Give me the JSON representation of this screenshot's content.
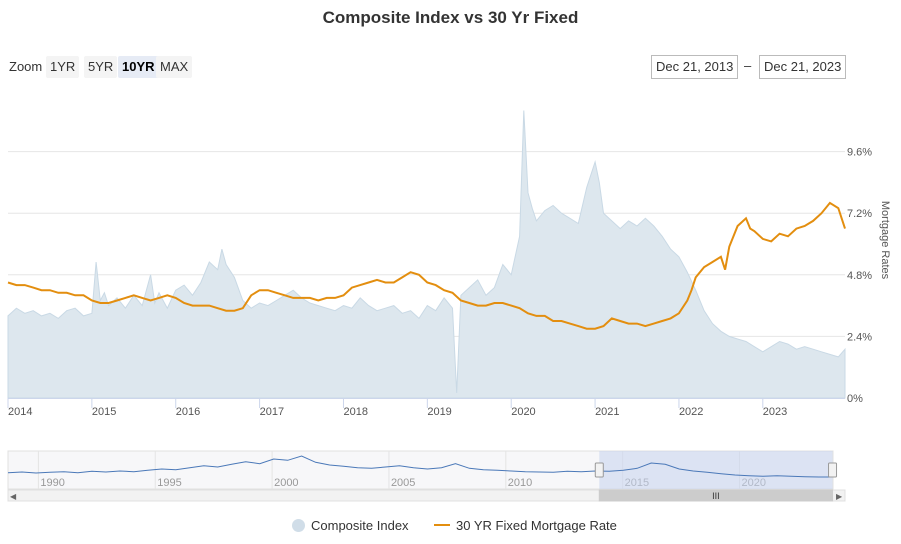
{
  "chart_title": "Composite Index vs 30 Yr Fixed",
  "zoom": {
    "label": "Zoom",
    "buttons": [
      "1YR",
      "5YR",
      "10YR",
      "MAX"
    ],
    "active": "10YR"
  },
  "range": {
    "from": "Dec 21, 2013",
    "separator": "–",
    "to": "Dec 21, 2023"
  },
  "colors": {
    "composite_fill": "#dde7ee",
    "composite_line": "#c9d9e5",
    "mortgage_line": "#e38e0f",
    "navigator_line": "#4a78b8",
    "navigator_mask": "#c6d3ee"
  },
  "chart_data": {
    "type": "area",
    "x_axis": {
      "type": "year",
      "min": 2014.0,
      "max": 2023.98,
      "tick_labels": [
        "2014",
        "2015",
        "2016",
        "2017",
        "2018",
        "2019",
        "2020",
        "2021",
        "2022",
        "2023"
      ]
    },
    "y_axis_right": {
      "label": "Mortgage Rates",
      "min": 0,
      "max": 12,
      "tick_labels": [
        "0%",
        "2.4%",
        "4.8%",
        "7.2%",
        "9.6%"
      ]
    },
    "legend_position": "bottom",
    "series": [
      {
        "name": "Composite Index",
        "type": "area",
        "x": [
          2014.0,
          2014.1,
          2014.2,
          2014.3,
          2014.4,
          2014.5,
          2014.6,
          2014.7,
          2014.8,
          2014.9,
          2015.0,
          2015.05,
          2015.1,
          2015.15,
          2015.2,
          2015.3,
          2015.4,
          2015.5,
          2015.6,
          2015.7,
          2015.75,
          2015.8,
          2015.9,
          2016.0,
          2016.1,
          2016.2,
          2016.3,
          2016.4,
          2016.5,
          2016.55,
          2016.6,
          2016.7,
          2016.8,
          2016.9,
          2017.0,
          2017.1,
          2017.2,
          2017.3,
          2017.4,
          2017.5,
          2017.6,
          2017.7,
          2017.8,
          2017.9,
          2018.0,
          2018.1,
          2018.2,
          2018.3,
          2018.4,
          2018.5,
          2018.6,
          2018.7,
          2018.8,
          2018.9,
          2019.0,
          2019.1,
          2019.2,
          2019.3,
          2019.35,
          2019.4,
          2019.5,
          2019.6,
          2019.7,
          2019.8,
          2019.9,
          2020.0,
          2020.1,
          2020.15,
          2020.2,
          2020.25,
          2020.3,
          2020.4,
          2020.5,
          2020.6,
          2020.7,
          2020.8,
          2020.9,
          2021.0,
          2021.05,
          2021.1,
          2021.2,
          2021.3,
          2021.4,
          2021.5,
          2021.6,
          2021.7,
          2021.8,
          2021.9,
          2022.0,
          2022.1,
          2022.2,
          2022.3,
          2022.4,
          2022.5,
          2022.6,
          2022.7,
          2022.8,
          2022.9,
          2023.0,
          2023.1,
          2023.2,
          2023.3,
          2023.4,
          2023.5,
          2023.6,
          2023.7,
          2023.8,
          2023.9,
          2023.98
        ],
        "values": [
          3.2,
          3.5,
          3.3,
          3.4,
          3.2,
          3.3,
          3.1,
          3.4,
          3.5,
          3.2,
          3.3,
          5.3,
          3.8,
          4.1,
          3.6,
          3.9,
          3.5,
          4.0,
          3.6,
          4.8,
          3.7,
          4.1,
          3.5,
          4.2,
          4.4,
          4.0,
          4.5,
          5.3,
          5.0,
          5.8,
          5.2,
          4.7,
          3.8,
          3.5,
          3.7,
          3.6,
          3.8,
          4.0,
          4.2,
          3.9,
          3.7,
          3.6,
          3.5,
          3.4,
          3.6,
          3.5,
          3.9,
          3.6,
          3.4,
          3.5,
          3.6,
          3.3,
          3.4,
          3.1,
          3.6,
          3.4,
          3.9,
          3.5,
          0.2,
          4.0,
          4.3,
          4.6,
          4.0,
          4.3,
          5.2,
          4.8,
          6.3,
          11.2,
          8.0,
          7.4,
          6.9,
          7.3,
          7.5,
          7.2,
          7.0,
          6.8,
          8.2,
          9.2,
          8.4,
          7.2,
          6.9,
          6.6,
          6.9,
          6.7,
          7.0,
          6.7,
          6.3,
          5.8,
          5.5,
          4.9,
          4.2,
          3.4,
          2.9,
          2.6,
          2.4,
          2.3,
          2.2,
          2.0,
          1.8,
          2.0,
          2.2,
          2.1,
          1.9,
          2.0,
          1.9,
          1.8,
          1.7,
          1.6,
          1.9
        ]
      },
      {
        "name": "30 YR Fixed Mortgage Rate",
        "type": "line",
        "x": [
          2014.0,
          2014.1,
          2014.2,
          2014.3,
          2014.4,
          2014.5,
          2014.6,
          2014.7,
          2014.8,
          2014.9,
          2015.0,
          2015.1,
          2015.2,
          2015.3,
          2015.4,
          2015.5,
          2015.6,
          2015.7,
          2015.8,
          2015.9,
          2016.0,
          2016.1,
          2016.2,
          2016.3,
          2016.4,
          2016.5,
          2016.6,
          2016.7,
          2016.8,
          2016.9,
          2017.0,
          2017.1,
          2017.2,
          2017.3,
          2017.4,
          2017.5,
          2017.6,
          2017.7,
          2017.8,
          2017.9,
          2018.0,
          2018.1,
          2018.2,
          2018.3,
          2018.4,
          2018.5,
          2018.6,
          2018.7,
          2018.8,
          2018.9,
          2019.0,
          2019.1,
          2019.2,
          2019.3,
          2019.4,
          2019.5,
          2019.6,
          2019.7,
          2019.8,
          2019.9,
          2020.0,
          2020.1,
          2020.2,
          2020.3,
          2020.4,
          2020.5,
          2020.6,
          2020.7,
          2020.8,
          2020.9,
          2021.0,
          2021.1,
          2021.2,
          2021.3,
          2021.4,
          2021.5,
          2021.6,
          2021.7,
          2021.8,
          2021.9,
          2022.0,
          2022.1,
          2022.15,
          2022.2,
          2022.3,
          2022.4,
          2022.5,
          2022.55,
          2022.6,
          2022.7,
          2022.8,
          2022.85,
          2022.9,
          2023.0,
          2023.1,
          2023.2,
          2023.3,
          2023.4,
          2023.5,
          2023.6,
          2023.7,
          2023.8,
          2023.9,
          2023.98
        ],
        "values": [
          4.5,
          4.4,
          4.4,
          4.3,
          4.2,
          4.2,
          4.1,
          4.1,
          4.0,
          4.0,
          3.8,
          3.7,
          3.7,
          3.8,
          3.9,
          4.0,
          3.9,
          3.8,
          3.9,
          4.0,
          3.9,
          3.7,
          3.6,
          3.6,
          3.6,
          3.5,
          3.4,
          3.4,
          3.5,
          4.0,
          4.2,
          4.2,
          4.1,
          4.0,
          3.9,
          3.9,
          3.9,
          3.8,
          3.9,
          3.9,
          4.0,
          4.3,
          4.4,
          4.5,
          4.6,
          4.5,
          4.5,
          4.7,
          4.9,
          4.8,
          4.5,
          4.4,
          4.2,
          4.1,
          3.8,
          3.7,
          3.6,
          3.6,
          3.7,
          3.7,
          3.6,
          3.5,
          3.3,
          3.2,
          3.2,
          3.0,
          3.0,
          2.9,
          2.8,
          2.7,
          2.7,
          2.8,
          3.1,
          3.0,
          2.9,
          2.9,
          2.8,
          2.9,
          3.0,
          3.1,
          3.3,
          3.8,
          4.2,
          4.7,
          5.1,
          5.3,
          5.5,
          5.0,
          5.9,
          6.7,
          7.0,
          6.6,
          6.5,
          6.2,
          6.1,
          6.4,
          6.3,
          6.6,
          6.7,
          6.9,
          7.2,
          7.6,
          7.4,
          6.6
        ]
      }
    ]
  },
  "navigator": {
    "tick_labels": [
      "1990",
      "1995",
      "2000",
      "2005",
      "2010",
      "2015",
      "2020"
    ],
    "scrollbar_grip": "III"
  },
  "legend": [
    {
      "label": "Composite Index"
    },
    {
      "label": "30 YR Fixed Mortgage Rate"
    }
  ]
}
